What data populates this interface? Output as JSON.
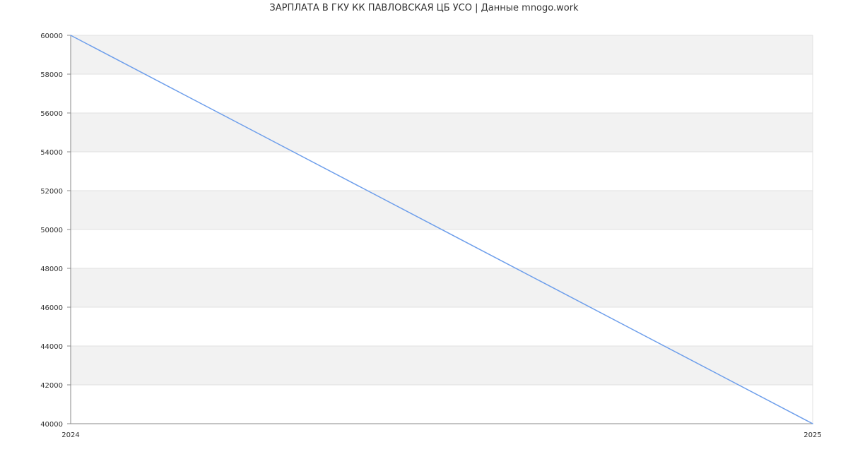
{
  "chart_data": {
    "type": "line",
    "title": "ЗАРПЛАТА В ГКУ КК ПАВЛОВСКАЯ ЦБ УСО | Данные mnogo.work",
    "xlabel": "",
    "ylabel": "",
    "x_ticks": [
      "2024",
      "2025"
    ],
    "y_ticks": [
      40000,
      42000,
      44000,
      46000,
      48000,
      50000,
      52000,
      54000,
      56000,
      58000,
      60000
    ],
    "ylim": [
      40000,
      60000
    ],
    "xlim": [
      2024,
      2025
    ],
    "grid": true,
    "series": [
      {
        "x": [
          2024,
          2025
        ],
        "values": [
          60000,
          40000
        ],
        "color": "#6d9eeb"
      }
    ],
    "colors": {
      "band": "#f2f2f2",
      "grid": "#e0e0e0",
      "axis": "#888888"
    }
  }
}
